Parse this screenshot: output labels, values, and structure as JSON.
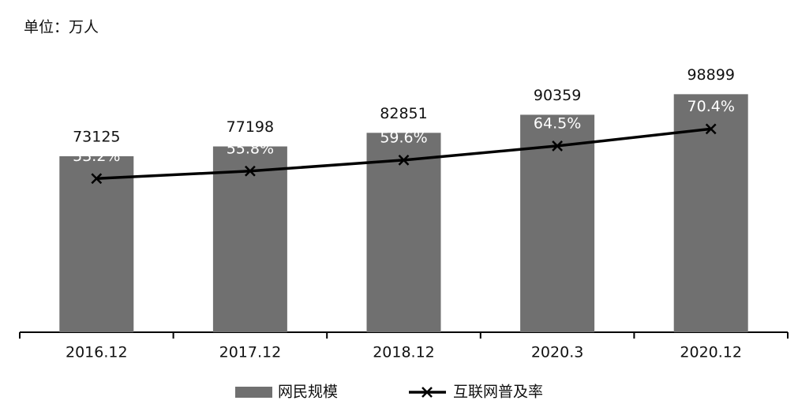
{
  "chart_data": {
    "type": "bar",
    "ylabel": "单位：万人",
    "categories": [
      "2016.12",
      "2017.12",
      "2018.12",
      "2020.3",
      "2020.12"
    ],
    "ylim": [
      0,
      120000
    ],
    "y2lim": [
      0,
      100
    ],
    "series": [
      {
        "name": "网民规模",
        "type": "bar",
        "color": "#707070",
        "values": [
          73125,
          77198,
          82851,
          90359,
          98899
        ]
      },
      {
        "name": "互联网普及率",
        "type": "line",
        "axis": "y2",
        "color": "#000000",
        "values": [
          53.2,
          55.8,
          59.6,
          64.5,
          70.4
        ],
        "value_labels": [
          "53.2%",
          "55.8%",
          "59.6%",
          "64.5%",
          "70.4%"
        ]
      }
    ]
  }
}
